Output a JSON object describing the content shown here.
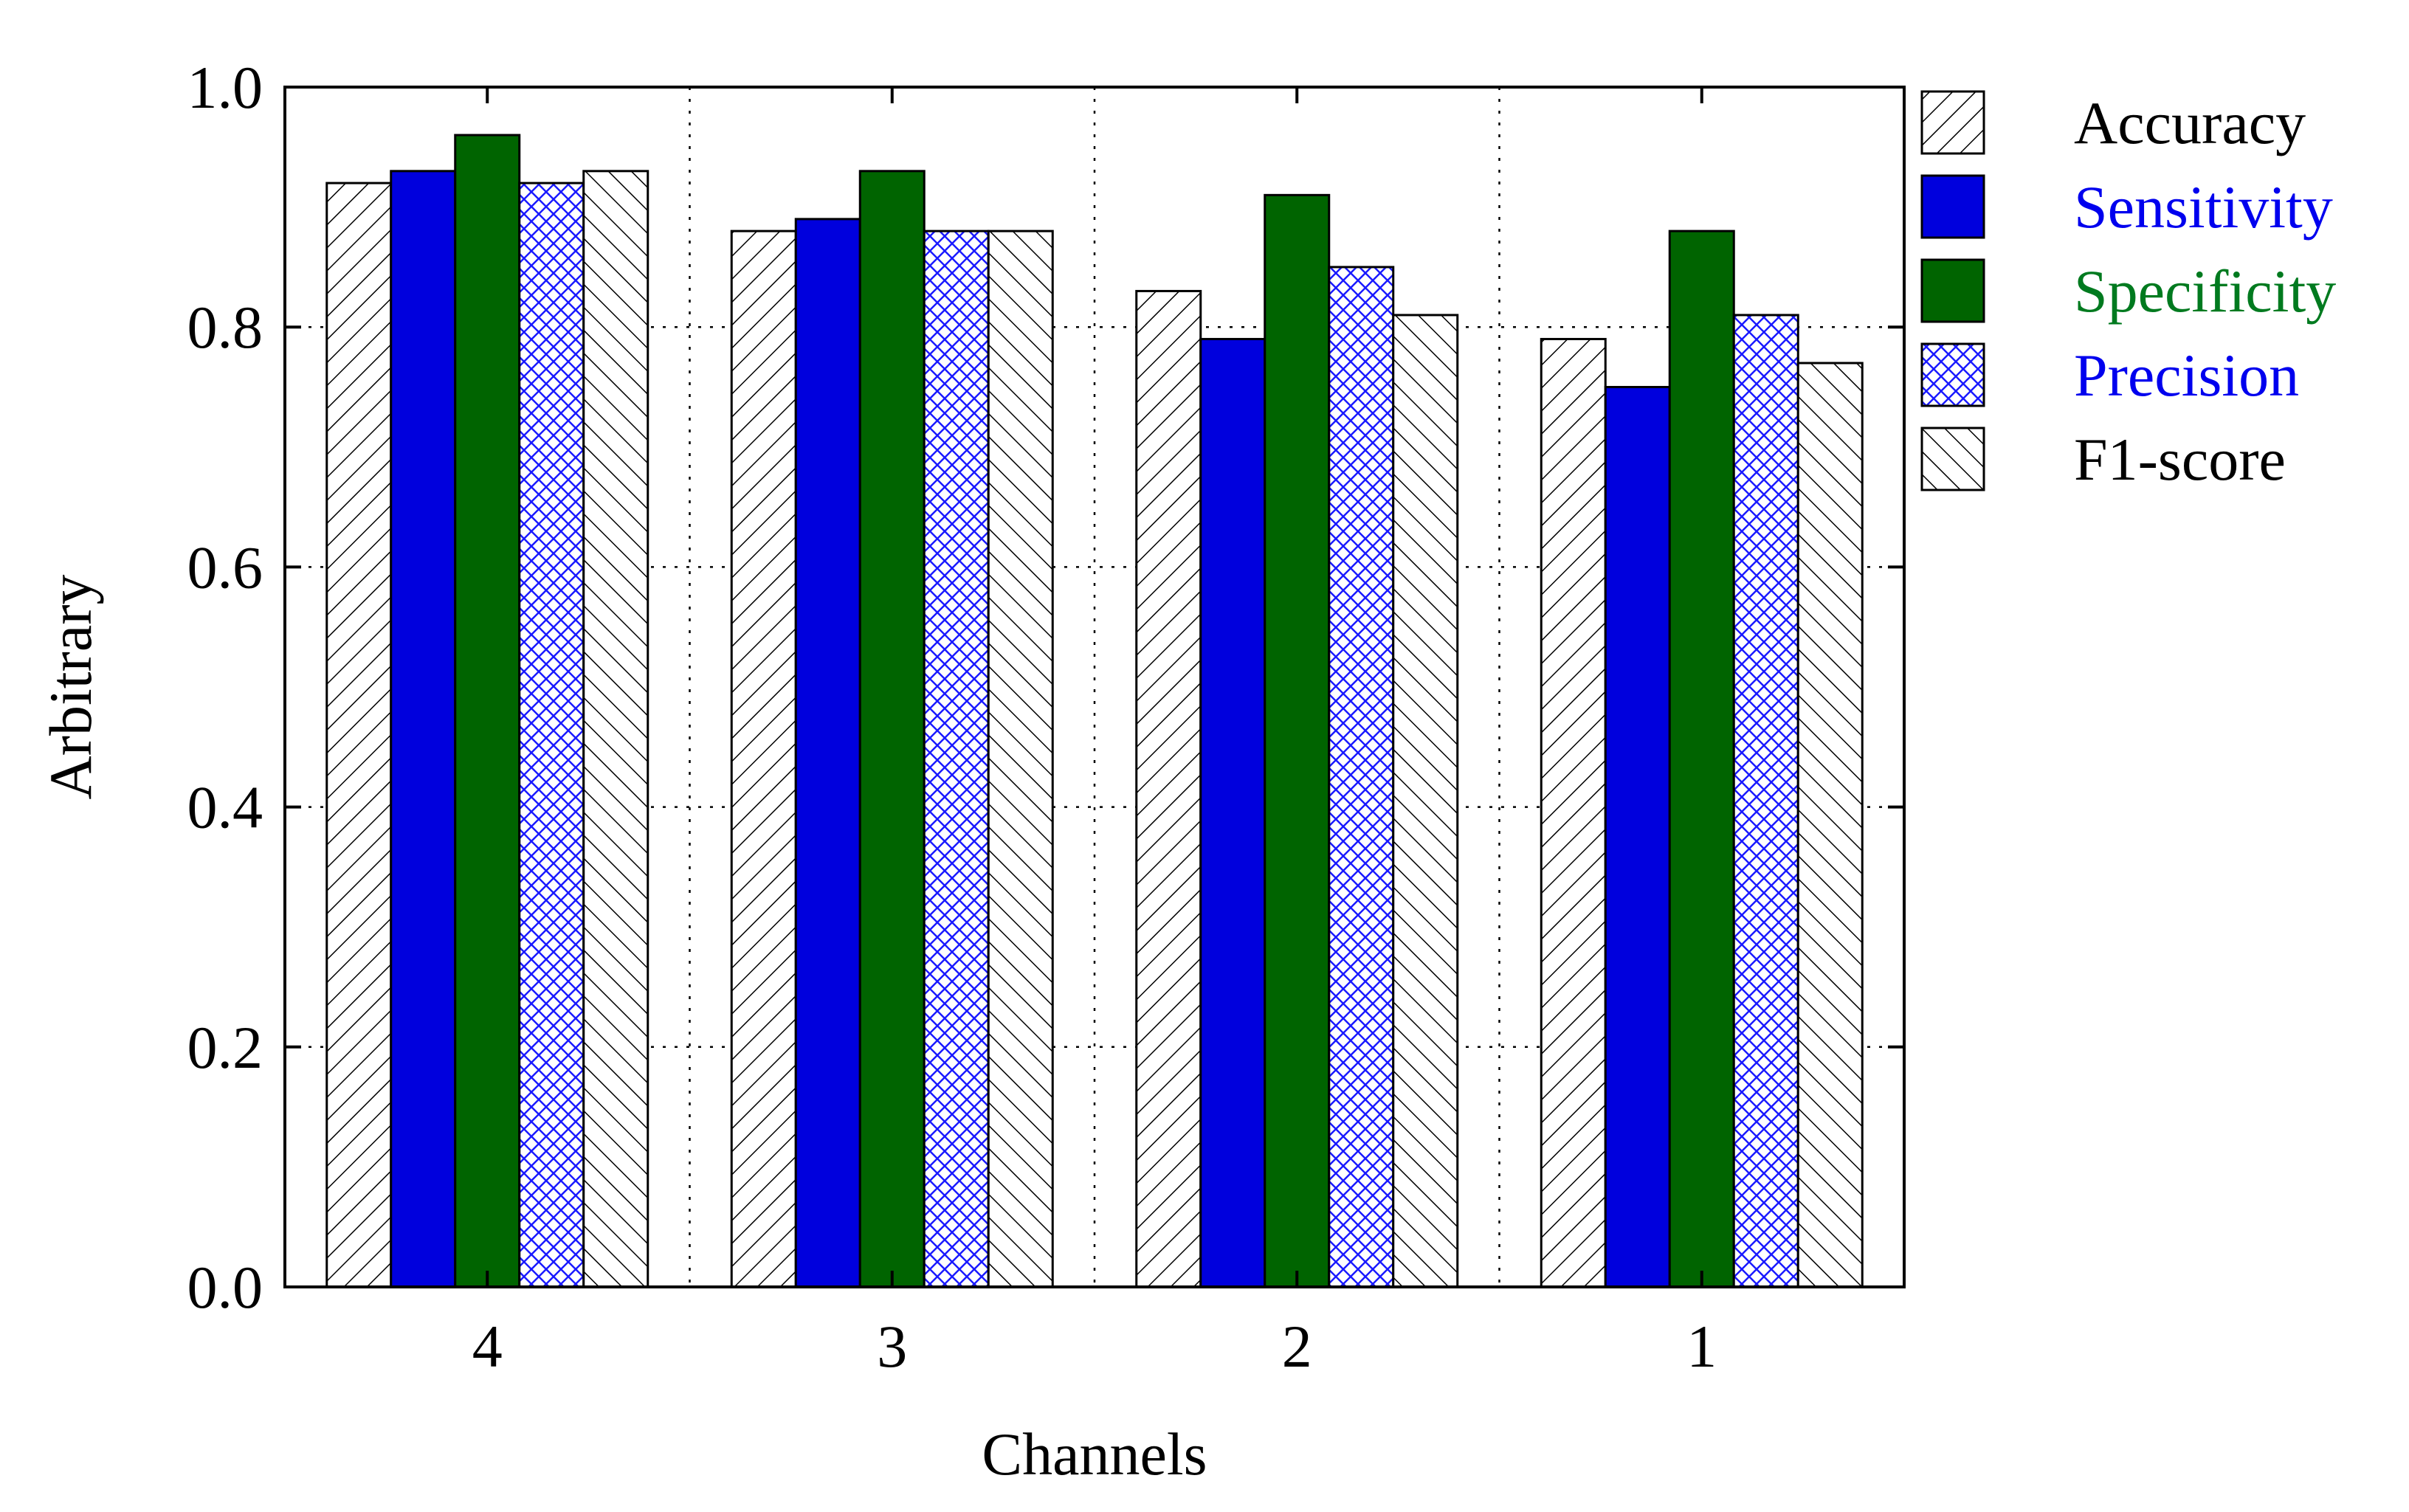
{
  "chart_data": {
    "type": "bar",
    "title": "",
    "xlabel": "Channels",
    "ylabel": "Arbitrary",
    "categories": [
      "4",
      "3",
      "2",
      "1"
    ],
    "ylim": [
      0,
      1.0
    ],
    "yticks": [
      "0.0",
      "0.2",
      "0.4",
      "0.6",
      "0.8",
      "1.0"
    ],
    "grid": "dotted, vertical separators between groups and horizontal at y ticks",
    "legend_position": "right, outside plot",
    "series": [
      {
        "name": "Accuracy",
        "values": [
          0.92,
          0.88,
          0.83,
          0.79
        ],
        "fill": "diagonal-hatch-forward",
        "legend_color": "#000000"
      },
      {
        "name": "Sensitivity",
        "values": [
          0.93,
          0.89,
          0.79,
          0.75
        ],
        "fill": "#0000dd",
        "legend_color": "#0000ee"
      },
      {
        "name": "Specificity",
        "values": [
          0.96,
          0.93,
          0.91,
          0.88
        ],
        "fill": "#006400",
        "legend_color": "#007a1f"
      },
      {
        "name": "Precision",
        "values": [
          0.92,
          0.88,
          0.85,
          0.81
        ],
        "fill": "blue-crosshatch",
        "legend_color": "#0000ee"
      },
      {
        "name": "F1-score",
        "values": [
          0.93,
          0.88,
          0.81,
          0.77
        ],
        "fill": "diagonal-hatch-backward",
        "legend_color": "#000000"
      }
    ]
  }
}
